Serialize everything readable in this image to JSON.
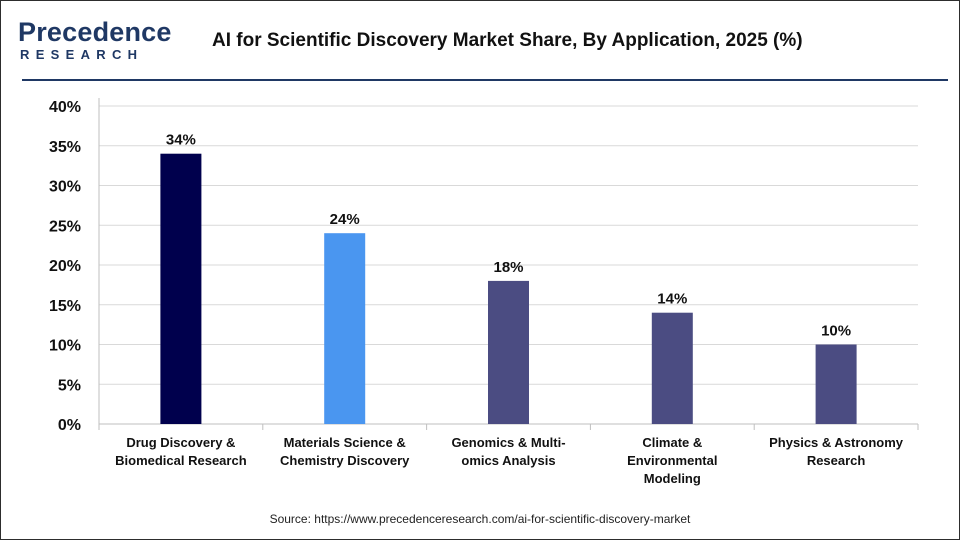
{
  "header": {
    "logo_top": "Precedence",
    "logo_bottom": "RESEARCH",
    "title": "AI for Scientific Discovery Market Share, By Application, 2025 (%)"
  },
  "source": "Source: https://www.precedenceresearch.com/ai-for-scientific-discovery-market",
  "colors": {
    "brand": "#1f3864",
    "grid": "#d9d9d9",
    "axis": "#bfbfbf"
  },
  "chart_data": {
    "type": "bar",
    "title": "AI for Scientific Discovery Market Share, By Application, 2025 (%)",
    "xlabel": "",
    "ylabel": "",
    "ylim": [
      0,
      40
    ],
    "y_ticks": [
      0,
      5,
      10,
      15,
      20,
      25,
      30,
      35,
      40
    ],
    "y_tick_labels": [
      "0%",
      "5%",
      "10%",
      "15%",
      "20%",
      "25%",
      "30%",
      "35%",
      "40%"
    ],
    "grid": true,
    "categories": [
      [
        "Drug Discovery &",
        "Biomedical Research"
      ],
      [
        "Materials Science &",
        "Chemistry Discovery"
      ],
      [
        "Genomics & Multi-",
        "omics Analysis"
      ],
      [
        "Climate &",
        "Environmental",
        "Modeling"
      ],
      [
        "Physics & Astronomy",
        "Research"
      ]
    ],
    "values": [
      34,
      24,
      18,
      14,
      10
    ],
    "data_labels": [
      "34%",
      "24%",
      "18%",
      "14%",
      "10%"
    ],
    "bar_colors": [
      "#00004d",
      "#4a96f0",
      "#4b4c82",
      "#4b4c82",
      "#4b4c82"
    ]
  }
}
